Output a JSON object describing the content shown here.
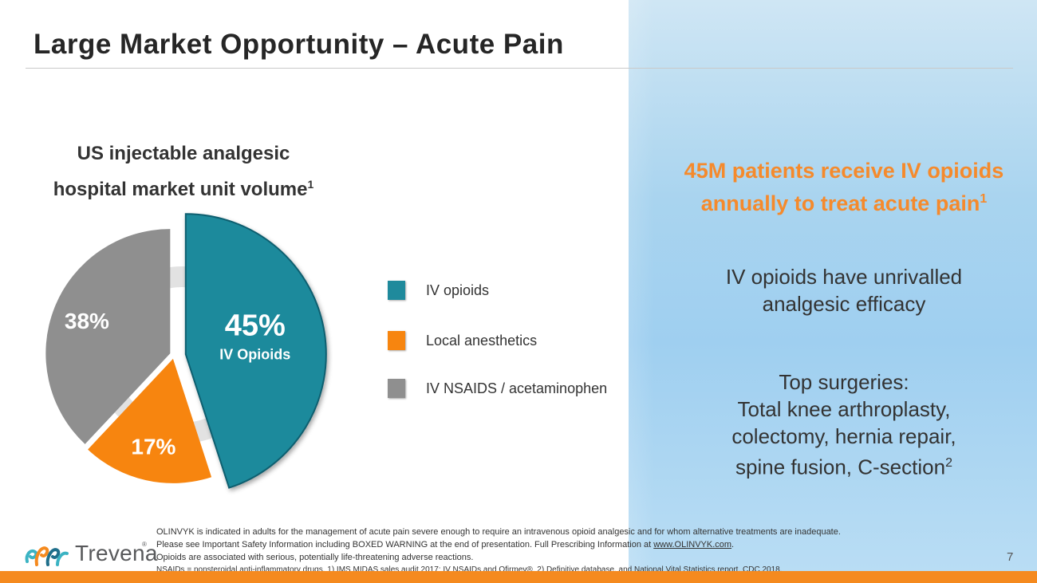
{
  "title": "Large Market Opportunity – Acute Pain",
  "chart_data": {
    "type": "pie",
    "title_line1": "US injectable analgesic",
    "title_line2": "hospital market unit volume",
    "title_sup": "1",
    "categories": [
      "IV opioids",
      "Local anesthetics",
      "IV NSAIDS / acetaminophen"
    ],
    "values": [
      45,
      17,
      38
    ],
    "slice_labels": [
      "45%",
      "17%",
      "38%"
    ],
    "highlight_sublabel": "IV Opioids",
    "colors": [
      "#1f8a9c",
      "#f7850f",
      "#8f8f8f"
    ]
  },
  "legend": [
    {
      "label": "IV opioids",
      "color": "#1f8a9c"
    },
    {
      "label": "Local anesthetics",
      "color": "#f7850f"
    },
    {
      "label": "IV NSAIDS / acetaminophen",
      "color": "#8f8f8f"
    }
  ],
  "callout": {
    "line1": "45M patients receive IV opioids",
    "line2": "annually to treat acute pain",
    "sup": "1"
  },
  "efficacy": {
    "line1": "IV opioids have unrivalled",
    "line2": "analgesic efficacy"
  },
  "surgeries": {
    "line1": "Top surgeries:",
    "line2": "Total knee arthroplasty,",
    "line3": "colectomy, hernia repair,",
    "line4": "spine fusion, C-section",
    "sup": "2"
  },
  "logo": {
    "name": "Trevena",
    "reg": "®"
  },
  "footnotes": {
    "line1": "OLINVYK is indicated in adults for the management of acute pain severe enough to require an intravenous opioid analgesic and for whom alternative treatments are inadequate.",
    "line2_pre": "Please see Important Safety Information including BOXED WARNING at the end of presentation. Full Prescribing Information at ",
    "line2_link": "www.OLINVYK.com",
    "line2_post": ".",
    "line3": "Opioids are associated with serious, potentially life-threatening adverse reactions.",
    "line4": "NSAIDs = nonsteroidal anti-inflammatory drugs. 1) IMS MIDAS sales audit 2017; IV NSAIDs and Ofirmev®. 2) Definitive database, and National Vital Statistics report, CDC 2018."
  },
  "page_number": "7"
}
